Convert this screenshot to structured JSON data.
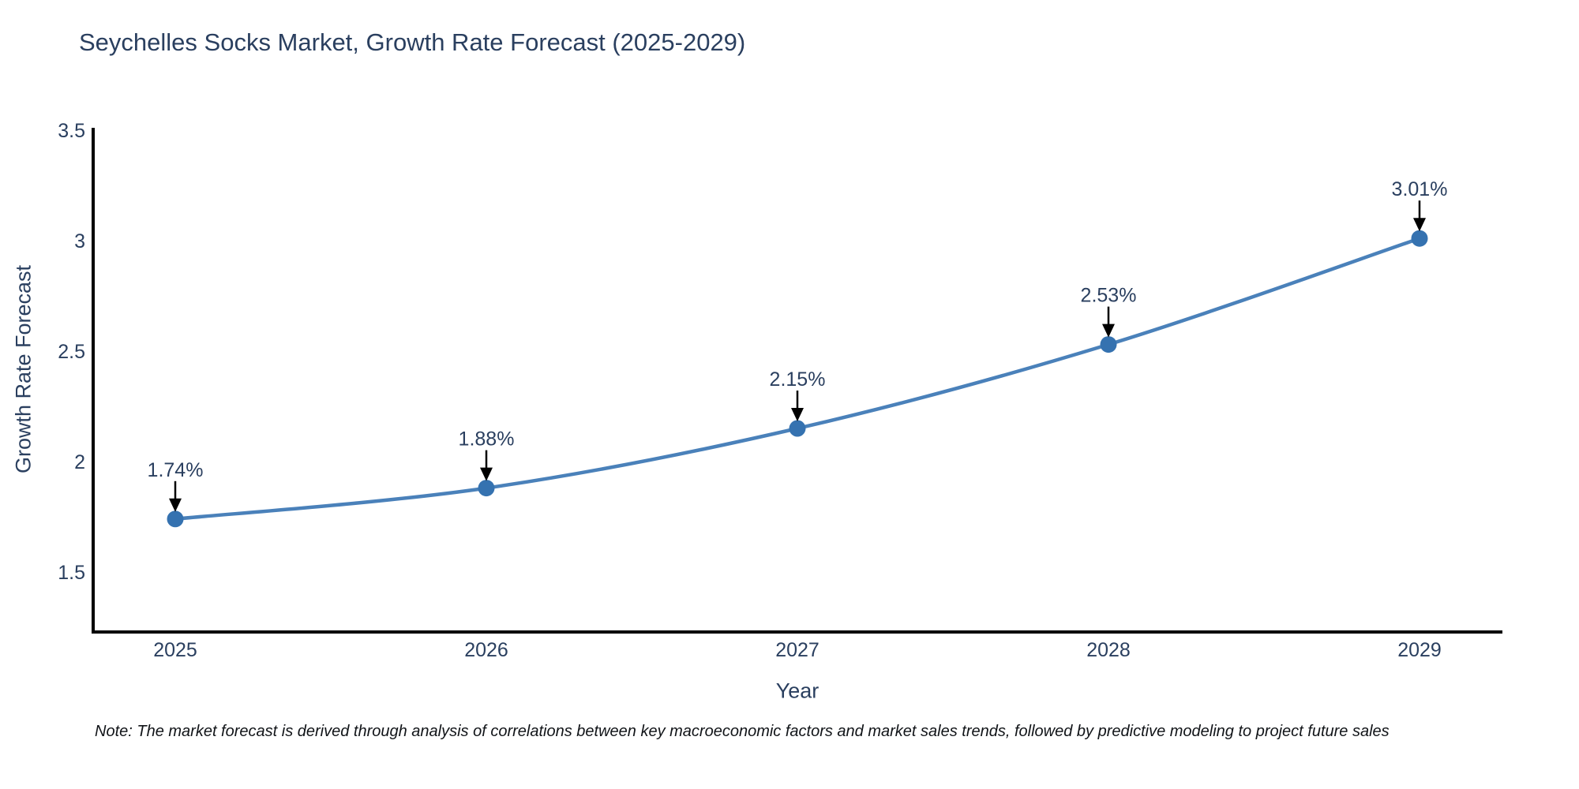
{
  "title": "Seychelles Socks Market, Growth Rate Forecast (2025-2029)",
  "note": "Note: The market forecast is derived through analysis of correlations between key macroeconomic factors and market sales trends, followed by predictive modeling to project future sales",
  "chart_data": {
    "type": "line",
    "title": "Seychelles Socks Market, Growth Rate Forecast (2025-2029)",
    "xlabel": "Year",
    "ylabel": "Growth Rate Forecast",
    "x": [
      2025,
      2026,
      2027,
      2028,
      2029
    ],
    "xticks": [
      "2025",
      "2026",
      "2027",
      "2028",
      "2029"
    ],
    "yticks": [
      "1.5",
      "2",
      "2.5",
      "3",
      "3.5"
    ],
    "ytick_values": [
      1.5,
      2,
      2.5,
      3,
      3.5
    ],
    "ylim": [
      1.25,
      3.5
    ],
    "series": [
      {
        "name": "Growth Rate Forecast",
        "values": [
          1.74,
          1.88,
          2.15,
          2.53,
          3.01
        ]
      }
    ],
    "point_labels": [
      "1.74%",
      "1.88%",
      "2.15%",
      "2.53%",
      "3.01%"
    ],
    "grid": false,
    "legend": false,
    "line_color": "#4a81ba",
    "marker_color": "#3572b0",
    "arrow_color": "#000000",
    "axis_color": "#000000",
    "text_color": "#2a3f5f"
  }
}
